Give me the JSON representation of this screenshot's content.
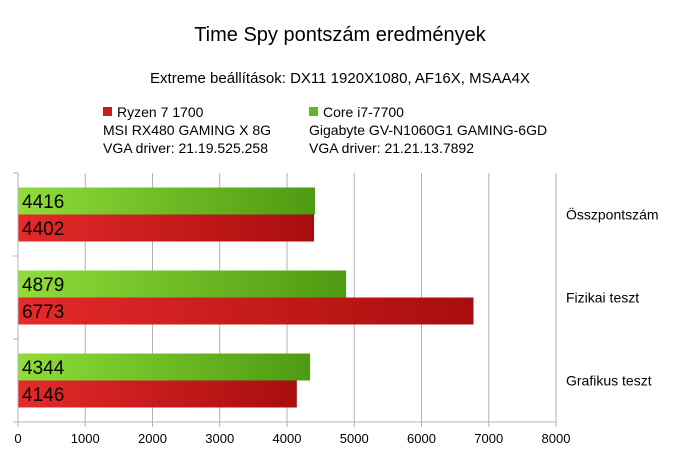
{
  "title": "Time Spy pontszám eredmények",
  "subtitle": "Extreme beállítások: DX11 1920X1080, AF16X, MSAA4X",
  "legend": [
    {
      "lines": [
        "Ryzen 7 1700",
        "MSI RX480 GAMING X 8G",
        "VGA driver: 21.19.525.258"
      ],
      "color": "#c81c1c"
    },
    {
      "lines": [
        "Core i7-7700",
        "Gigabyte GV-N1060G1 GAMING-6GD",
        "VGA driver: 21.21.13.7892"
      ],
      "color": "#62b526"
    }
  ],
  "chart_data": {
    "type": "bar",
    "orientation": "horizontal",
    "categories": [
      "Összpontszám",
      "Fizikai teszt",
      "Grafikus teszt"
    ],
    "series": [
      {
        "name": "Core i7-7700",
        "values": [
          4416,
          4879,
          4344
        ],
        "color": "#62b526"
      },
      {
        "name": "Ryzen 7 1700",
        "values": [
          4402,
          6773,
          4146
        ],
        "color": "#c81c1c"
      }
    ],
    "xlim": [
      0,
      8000
    ],
    "xticks": [
      0,
      1000,
      2000,
      3000,
      4000,
      5000,
      6000,
      7000,
      8000
    ],
    "grid": true,
    "data_labels": true,
    "legend_position": "top"
  }
}
